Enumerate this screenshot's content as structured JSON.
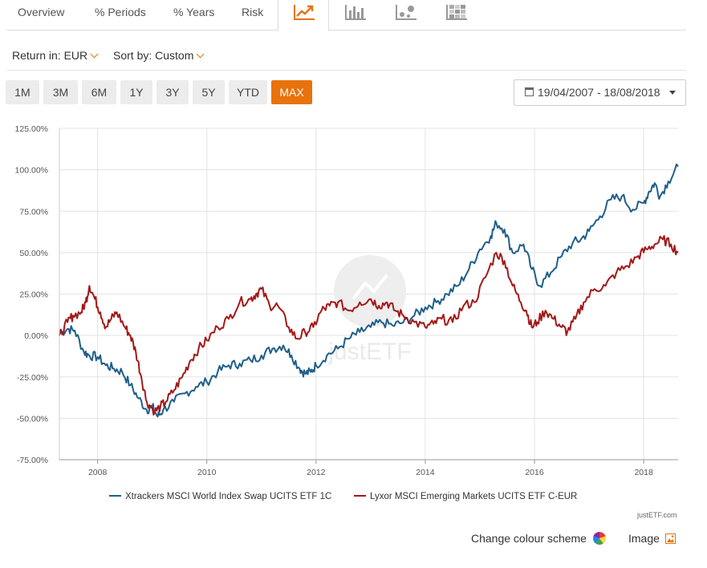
{
  "tabs": {
    "overview": "Overview",
    "periods": "% Periods",
    "years": "% Years",
    "risk": "Risk",
    "icons": [
      "line-chart-icon",
      "bar-chart-icon",
      "scatter-chart-icon",
      "heatmap-icon"
    ]
  },
  "options": {
    "return_label": "Return in: EUR",
    "sort_label": "Sort by: Custom"
  },
  "periods": [
    "1M",
    "3M",
    "6M",
    "1Y",
    "3Y",
    "5Y",
    "YTD",
    "MAX"
  ],
  "active_period": "MAX",
  "date_range": "19/04/2007 - 18/08/2018",
  "footer": {
    "credit": "justETF.com",
    "change_colour": "Change colour scheme",
    "image": "Image"
  },
  "colors": {
    "accent": "#e8720c",
    "series1": "#1f5f8b",
    "series2": "#a31919"
  },
  "chart_data": {
    "type": "line",
    "title": "",
    "xlabel": "",
    "ylabel": "",
    "x_ticks": [
      "2008",
      "2010",
      "2012",
      "2014",
      "2016",
      "2018"
    ],
    "y_ticks": [
      "125.00%",
      "100.00%",
      "75.00%",
      "50.00%",
      "25.00%",
      "0.00%",
      "-25.00%",
      "-50.00%",
      "-75.00%"
    ],
    "ylim": [
      -75,
      125
    ],
    "xlim": [
      2007.3,
      2018.63
    ],
    "grid": true,
    "legend_position": "bottom",
    "watermark": "justETF",
    "series": [
      {
        "name": "Xtrackers MSCI World Index Swap UCITS ETF 1C",
        "x": [
          2007.3,
          2007.45,
          2007.58,
          2007.75,
          2007.85,
          2008.0,
          2008.15,
          2008.3,
          2008.45,
          2008.6,
          2008.75,
          2008.9,
          2009.0,
          2009.1,
          2009.2,
          2009.4,
          2009.6,
          2009.8,
          2010.0,
          2010.2,
          2010.4,
          2010.6,
          2010.8,
          2011.0,
          2011.2,
          2011.4,
          2011.55,
          2011.7,
          2011.8,
          2011.9,
          2012.0,
          2012.2,
          2012.4,
          2012.6,
          2012.8,
          2013.0,
          2013.2,
          2013.4,
          2013.6,
          2013.8,
          2014.0,
          2014.2,
          2014.4,
          2014.6,
          2014.8,
          2015.0,
          2015.2,
          2015.3,
          2015.45,
          2015.6,
          2015.8,
          2015.95,
          2016.1,
          2016.3,
          2016.5,
          2016.7,
          2016.85,
          2017.0,
          2017.2,
          2017.4,
          2017.6,
          2017.8,
          2018.0,
          2018.1,
          2018.2,
          2018.3,
          2018.45,
          2018.63
        ],
        "y": [
          1,
          4,
          3,
          -10,
          -12,
          -13,
          -18,
          -20,
          -22,
          -30,
          -38,
          -45,
          -43,
          -49,
          -45,
          -40,
          -35,
          -31,
          -28,
          -22,
          -18,
          -17,
          -15,
          -12,
          -8,
          -6,
          -12,
          -20,
          -23,
          -22,
          -18,
          -12,
          -8,
          -2,
          2,
          5,
          8,
          6,
          8,
          12,
          17,
          20,
          25,
          30,
          40,
          52,
          60,
          68,
          64,
          50,
          55,
          40,
          30,
          38,
          48,
          56,
          58,
          63,
          72,
          82,
          84,
          76,
          80,
          87,
          92,
          84,
          93,
          102
        ]
      },
      {
        "name": "Lyxor MSCI Emerging Markets UCITS ETF C-EUR",
        "x": [
          2007.3,
          2007.45,
          2007.55,
          2007.7,
          2007.78,
          2007.85,
          2007.95,
          2008.05,
          2008.15,
          2008.25,
          2008.35,
          2008.5,
          2008.6,
          2008.7,
          2008.8,
          2008.9,
          2009.05,
          2009.15,
          2009.25,
          2009.4,
          2009.55,
          2009.7,
          2009.85,
          2010.0,
          2010.2,
          2010.4,
          2010.6,
          2010.8,
          2010.9,
          2011.0,
          2011.15,
          2011.3,
          2011.5,
          2011.65,
          2011.8,
          2011.95,
          2012.1,
          2012.25,
          2012.4,
          2012.6,
          2012.8,
          2013.0,
          2013.15,
          2013.3,
          2013.45,
          2013.6,
          2013.8,
          2014.0,
          2014.15,
          2014.3,
          2014.5,
          2014.7,
          2014.9,
          2015.1,
          2015.3,
          2015.45,
          2015.6,
          2015.75,
          2015.85,
          2015.95,
          2016.05,
          2016.2,
          2016.35,
          2016.5,
          2016.6,
          2016.75,
          2016.9,
          2017.1,
          2017.3,
          2017.5,
          2017.7,
          2017.9,
          2018.05,
          2018.2,
          2018.35,
          2018.5,
          2018.63
        ],
        "y": [
          0,
          8,
          12,
          14,
          20,
          30,
          22,
          14,
          5,
          10,
          14,
          5,
          0,
          -10,
          -25,
          -40,
          -46,
          -43,
          -40,
          -33,
          -25,
          -15,
          -8,
          -3,
          5,
          10,
          20,
          22,
          25,
          28,
          18,
          18,
          5,
          -2,
          2,
          5,
          15,
          18,
          20,
          15,
          20,
          22,
          18,
          20,
          15,
          12,
          8,
          5,
          7,
          10,
          8,
          18,
          20,
          35,
          50,
          45,
          30,
          20,
          15,
          5,
          8,
          15,
          10,
          5,
          2,
          10,
          20,
          28,
          30,
          38,
          42,
          48,
          52,
          55,
          58,
          55,
          50
        ]
      }
    ]
  }
}
